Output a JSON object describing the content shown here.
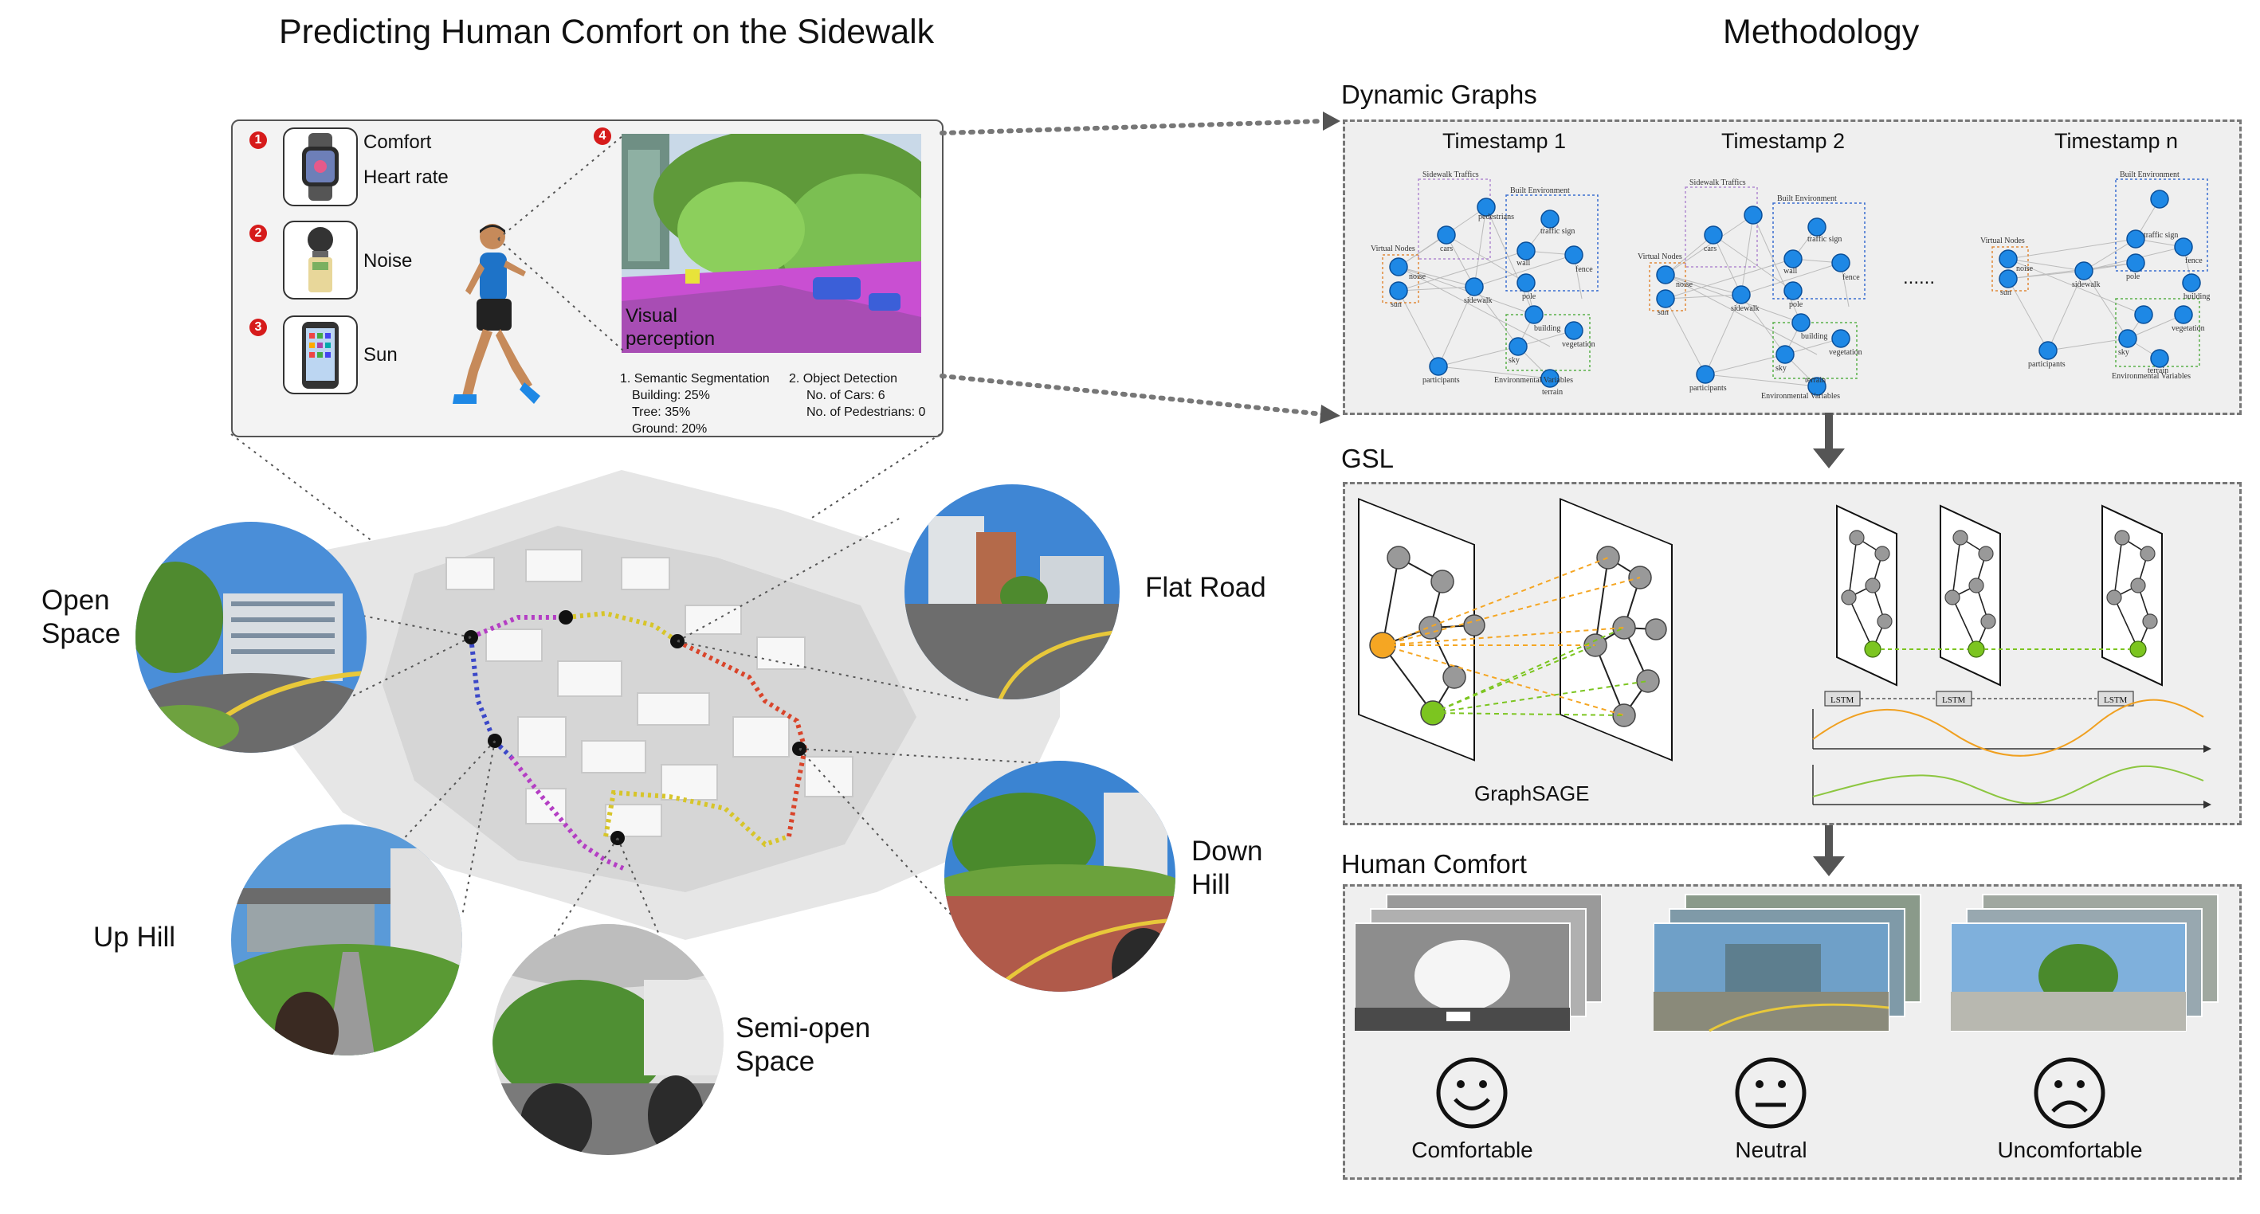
{
  "left": {
    "title": "Predicting Human Comfort on the Sidewalk",
    "sensors": [
      {
        "num": "1",
        "icon": "smartwatch-icon",
        "labels": [
          "Comfort",
          "Heart rate"
        ]
      },
      {
        "num": "2",
        "icon": "noise-meter-icon",
        "labels": [
          "Noise"
        ]
      },
      {
        "num": "3",
        "icon": "smartphone-icon",
        "labels": [
          "Sun"
        ]
      }
    ],
    "perception_num": "4",
    "visual_perception": "Visual\nperception",
    "segmentation": {
      "heading": "1. Semantic Segmentation",
      "items": [
        "Building: 25%",
        "Tree: 35%",
        "Ground: 20%"
      ]
    },
    "detection": {
      "heading": "2. Object Detection",
      "items": [
        "No. of Cars: 6",
        "No. of Pedestrians: 0"
      ]
    },
    "places": {
      "open_space": "Open\nSpace",
      "flat_road": "Flat Road",
      "down_hill": "Down\nHill",
      "up_hill": "Up Hill",
      "semi_open": "Semi-open\nSpace"
    }
  },
  "right": {
    "title": "Methodology",
    "dynamic_graphs": {
      "heading": "Dynamic Graphs",
      "timestamps": [
        "Timestamp 1",
        "Timestamp 2",
        "Timestamp n"
      ],
      "ellipsis": "......",
      "group_labels": [
        "Sidewalk Traffics",
        "Built Environment",
        "Virtual Nodes",
        "Environmental Variables"
      ],
      "node_labels": [
        "pedestrians",
        "cars",
        "noise",
        "sun",
        "sidewalk",
        "wall",
        "traffic sign",
        "pole",
        "fence",
        "building",
        "sky",
        "terrain",
        "vegetation",
        "participants"
      ]
    },
    "gsl": {
      "heading": "GSL",
      "graphsage": "GraphSAGE",
      "lstm": "LSTM"
    },
    "human_comfort": {
      "heading": "Human Comfort",
      "classes": [
        "Comfortable",
        "Neutral",
        "Uncomfortable"
      ]
    }
  },
  "colors": {
    "node_blue": "#1e88e5",
    "orange_node": "#f5a623",
    "green_node": "#7cc520",
    "route_purple": "#b43ec4",
    "route_yellow": "#d7c52a",
    "route_red": "#d9442a",
    "route_blue": "#3b48c8"
  }
}
